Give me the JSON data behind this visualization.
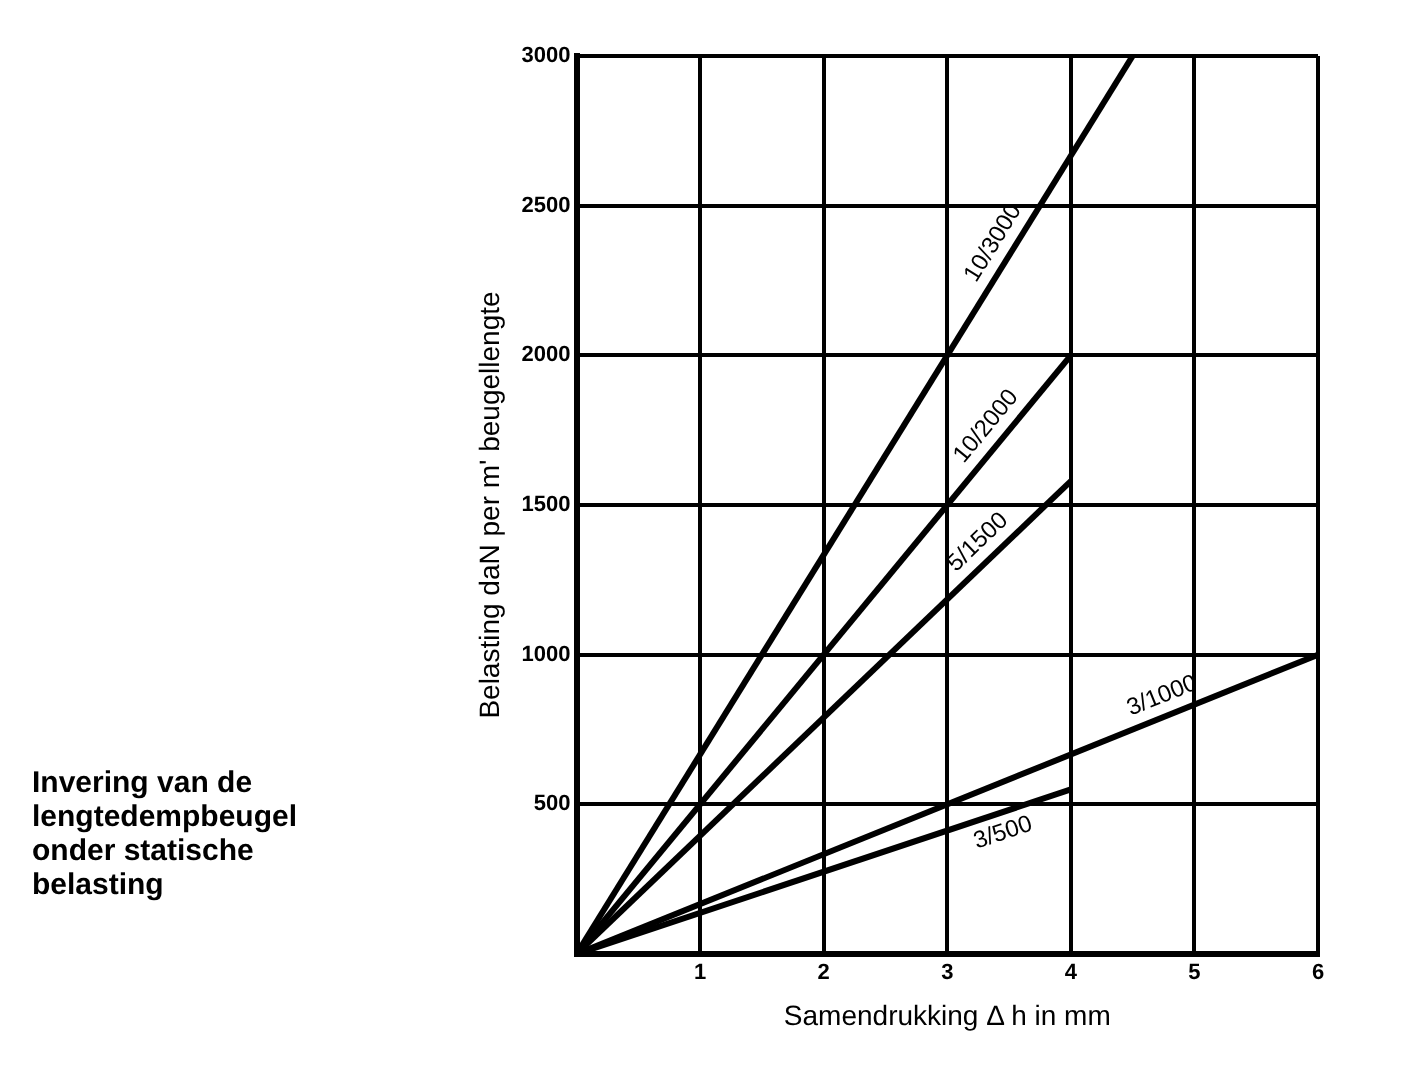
{
  "chart_data": {
    "type": "line",
    "title": "Invering van de lengtedempbeugel onder statische belasting",
    "xlabel": "Samendrukking Δ h in mm",
    "ylabel": "Belasting daN per m' beugellengte",
    "xlim": [
      0,
      6
    ],
    "xticks": [
      1,
      2,
      3,
      4,
      5,
      6
    ],
    "ylim": [
      0,
      3000
    ],
    "yticks": [
      500,
      1000,
      1500,
      2000,
      2500,
      3000
    ],
    "grid": true,
    "legend": false,
    "marker": "none",
    "line_style": "solid",
    "series": [
      {
        "name": "10/3000",
        "color": "#000000",
        "x": [
          0,
          4.5
        ],
        "values": [
          0,
          3000
        ]
      },
      {
        "name": "10/2000",
        "color": "#000000",
        "x": [
          0,
          4
        ],
        "values": [
          0,
          2000
        ]
      },
      {
        "name": "5/1500",
        "color": "#000000",
        "x": [
          0,
          4
        ],
        "values": [
          0,
          1580
        ]
      },
      {
        "name": "3/1000",
        "color": "#000000",
        "x": [
          0,
          6
        ],
        "values": [
          0,
          1000
        ]
      },
      {
        "name": "3/500",
        "color": "#000000",
        "x": [
          0,
          4
        ],
        "values": [
          0,
          550
        ]
      }
    ]
  }
}
